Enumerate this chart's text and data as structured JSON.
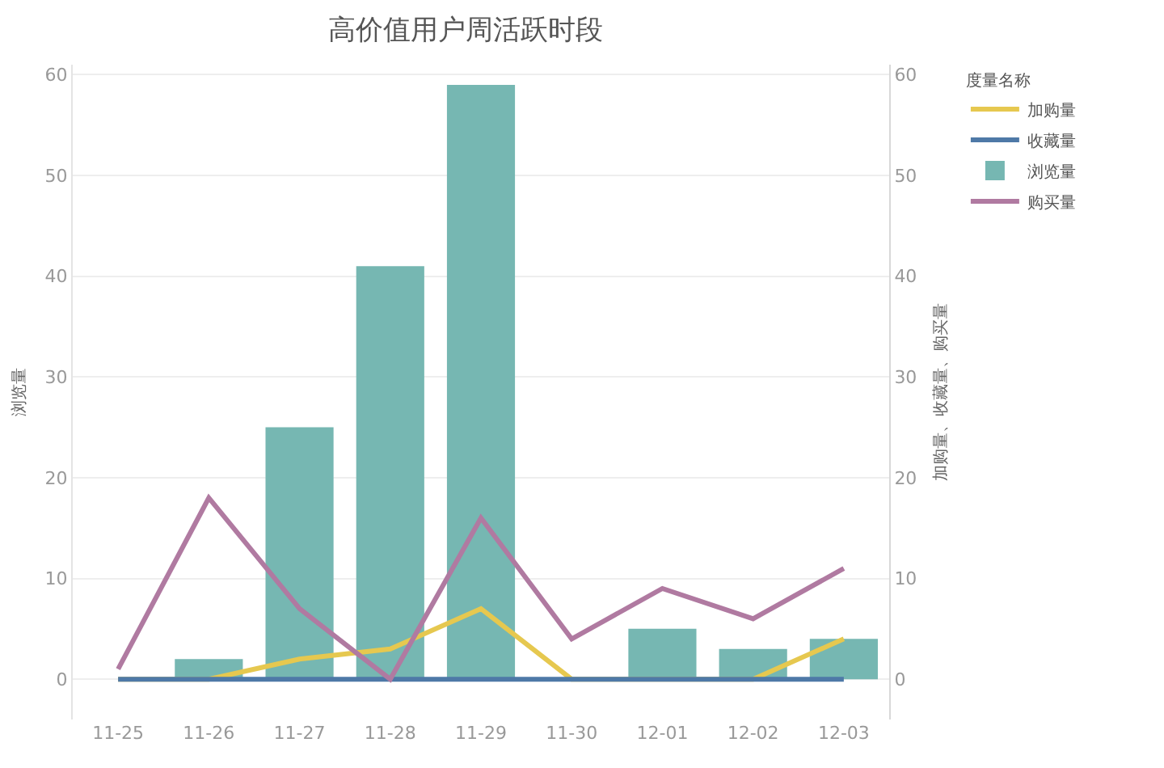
{
  "chart_data": {
    "type": "bar",
    "title": "高价值用户周活跃时段",
    "ylabel": "浏览量",
    "y2label": "加购量、收藏量、购买量",
    "legend_title": "度量名称",
    "categories": [
      "11-25",
      "11-26",
      "11-27",
      "11-28",
      "11-29",
      "11-30",
      "12-01",
      "12-02",
      "12-03"
    ],
    "series": [
      {
        "name": "加购量",
        "type": "line",
        "axis": "y2",
        "color": "#e6c84f",
        "values": [
          0,
          0,
          2,
          3,
          7,
          0,
          0,
          0,
          4
        ]
      },
      {
        "name": "收藏量",
        "type": "line",
        "axis": "y2",
        "color": "#4e79a7",
        "values": [
          0,
          0,
          0,
          0,
          0,
          0,
          0,
          0,
          0
        ]
      },
      {
        "name": "浏览量",
        "color": "#76b7b2",
        "values": [
          0,
          2,
          25,
          41,
          59,
          0,
          5,
          3,
          4
        ]
      },
      {
        "name": "购买量",
        "type": "line",
        "axis": "y2",
        "color": "#b07aa1",
        "values": [
          1,
          18,
          7,
          0,
          16,
          4,
          9,
          6,
          11
        ]
      }
    ],
    "ylim": [
      -4,
      61
    ],
    "yticks": [
      0,
      10,
      20,
      30,
      40,
      50,
      60
    ],
    "y2lim": [
      -4,
      61
    ],
    "y2ticks": [
      0,
      10,
      20,
      30,
      40,
      50,
      60
    ],
    "grid": "y",
    "legend": "top right",
    "marker": "none",
    "line_style": "solid"
  }
}
